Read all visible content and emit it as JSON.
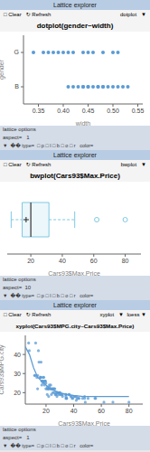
{
  "chart_data": [
    {
      "type": "dotplot",
      "title": "dotplot(gender~width)",
      "xlabel": "width",
      "ylabel": "gender",
      "xlim": [
        0.32,
        0.56
      ],
      "xticks": [
        0.35,
        {
          "value": 0.4,
          "label": "0.40"
        },
        0.45,
        {
          "value": 0.5,
          "label": "0.50"
        },
        0.55
      ],
      "categories": [
        "B",
        "G"
      ],
      "values": [
        [
          0.41,
          0.42,
          0.43,
          0.44,
          0.44,
          0.45,
          0.45,
          0.46,
          0.47,
          0.47,
          0.48,
          0.48,
          0.49,
          0.5,
          0.51,
          0.52,
          0.53
        ],
        [
          0.34,
          0.36,
          0.37,
          0.38,
          0.39,
          0.4,
          0.41,
          0.42,
          0.44,
          0.45,
          0.46,
          0.48,
          0.5,
          0.51
        ]
      ],
      "color": "#5b9bd5",
      "annotations": [
        "Lattice explorer",
        "□ Clear   ↻ Refresh",
        "dotplot   ▼",
        "lattice options",
        "aspect=   1",
        "▼  �� type=  □ p □ l □ b □ o □ r   color="
      ]
    },
    {
      "type": "box",
      "title": "bwplot(Cars93$Max.Price)",
      "xlabel": "Cars93$Max.Price",
      "xlim": [
        5,
        90
      ],
      "xticks": [
        20,
        40,
        60,
        80
      ],
      "tick_labels": "x",
      "q1": 14.5,
      "q3": 31.5,
      "median": 20.0,
      "whisker_low": 7.5,
      "whisker_high": 47.9,
      "outliers": [
        61.9,
        80.0
      ],
      "mean_marker": 17.0,
      "color": "#7ec8e3",
      "annotations": [
        "Lattice explorer",
        "□ Clear   ↻ Refresh",
        "bwplot   ▼",
        "lattice options",
        "aspect=  10",
        "▼  �� type=  □ p □ l □ b □ o □ r   color="
      ]
    },
    {
      "type": "scatter",
      "title": "xyplot(Cars93$MPG.city~Cars93$Max.Price)",
      "xlabel": "Cars93$Max.Price",
      "ylabel": "Cars93$MPG.city",
      "xlim": [
        5,
        90
      ],
      "ylim": [
        14,
        50
      ],
      "xticks": [
        20,
        40,
        60,
        80
      ],
      "yticks": [
        20,
        30,
        40
      ],
      "series": [
        {
          "type": "scatter",
          "color": "#5b9bd5",
          "x": [
            7.4,
            7.9,
            11.9,
            13.9,
            16.9,
            16.9,
            17.9,
            19.9,
            20.9,
            21.9,
            23.5,
            24.9,
            25.9,
            26.9,
            29.9,
            21.9,
            17.9,
            18.9,
            20.8,
            26.9,
            29.9,
            31.9,
            34.9,
            37.9,
            40.9,
            41.9,
            43.9,
            47.9,
            11.9,
            13.9,
            15.9,
            17.9,
            19.4,
            20.9,
            23.9,
            27.9,
            31.9,
            34.9,
            38.9,
            41.9,
            12.5,
            14.5,
            16.4,
            18.4,
            21.4,
            23.4,
            25.4,
            28.4,
            31.4,
            34.4,
            38.4,
            43.4,
            48.4,
            61.9,
            80.0,
            22.4,
            26.4,
            30.4,
            36.4,
            42.4,
            50.4,
            13.4,
            17.4,
            22.4,
            27.4,
            34.4,
            39.4,
            19.4,
            23.4,
            28.4,
            34.4,
            14.9,
            17.9,
            21.9,
            25.9,
            29.9,
            36.9,
            47.9,
            55.9,
            16.4,
            19.4,
            24.4,
            28.4,
            34.4,
            40.4,
            46.4,
            55.4,
            68.4,
            15.9,
            19.9,
            24.9,
            29.9
          ],
          "values": [
            46,
            42,
            29,
            22,
            24,
            26,
            26,
            22,
            19,
            18,
            22,
            20,
            20,
            19,
            20,
            22,
            25,
            24,
            22,
            19,
            20,
            19,
            17,
            18,
            18,
            18,
            17,
            17,
            29,
            29,
            28,
            26,
            26,
            23,
            19,
            18,
            18,
            17,
            17,
            16,
            46,
            42,
            36,
            28,
            22,
            24,
            22,
            19,
            19,
            18,
            18,
            17,
            15,
            15,
            15,
            24,
            22,
            19,
            19,
            17,
            17,
            28,
            26,
            23,
            20,
            17,
            17,
            26,
            22,
            20,
            19,
            36,
            28,
            22,
            22,
            19,
            19,
            18,
            17,
            28,
            26,
            22,
            20,
            19,
            18,
            17,
            17,
            15,
            28,
            25,
            22,
            20
          ]
        },
        {
          "type": "line",
          "color": "#5b9bd5",
          "x": [
            5,
            8,
            11,
            14,
            17,
            20,
            23,
            26,
            30,
            35,
            40,
            47,
            55,
            65,
            80
          ],
          "values": [
            44,
            40,
            33,
            28,
            26,
            24,
            22,
            21,
            20,
            19,
            18.5,
            18,
            18,
            18,
            18
          ]
        }
      ],
      "annotations": [
        "Lattice explorer",
        "□ Clear   ↻ Refresh",
        "xyplot   ▼  loess ▼",
        "lattice options",
        "aspect=   1",
        "▼  �� type=  □ p □ l □ b □ o □ r   color="
      ]
    }
  ]
}
